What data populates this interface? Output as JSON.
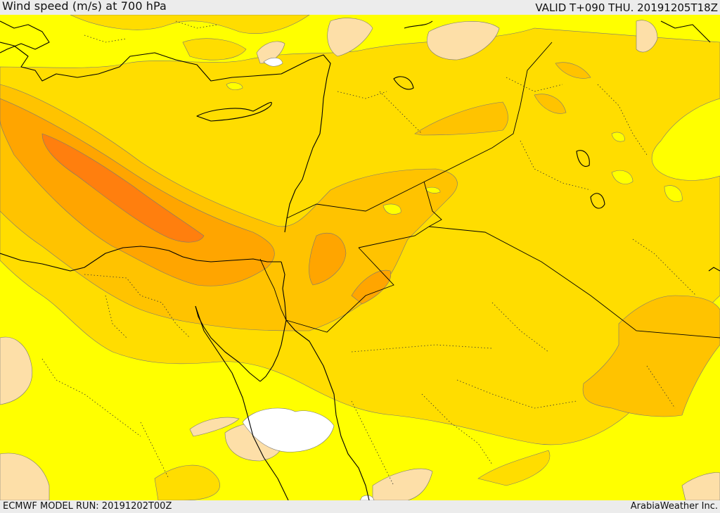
{
  "header": {
    "title": "Wind speed (m/s) at 700 hPa",
    "valid": "VALID T+090 THU. 20191205T18Z"
  },
  "footer": {
    "model_run": "ECMWF MODEL RUN: 20191202T00Z",
    "credit": "ArabiaWeather Inc."
  },
  "palette": {
    "white": "#ffffff",
    "peach": "#fddfa8",
    "yellow": "#ffff00",
    "gold": "#ffdd00",
    "light_orange": "#ffc300",
    "orange": "#ffa500",
    "dark_orange": "#ff7f0e",
    "border": "#000000"
  }
}
